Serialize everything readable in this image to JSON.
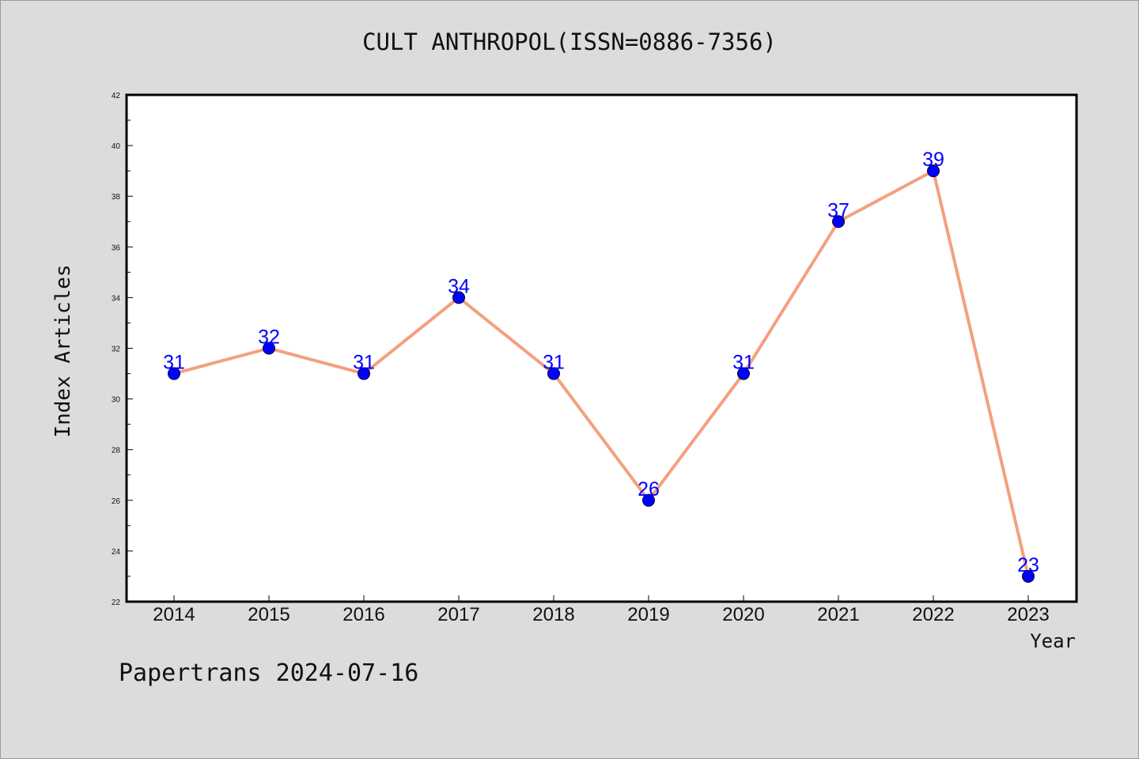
{
  "chart_data": {
    "type": "line",
    "title": "CULT ANTHROPOL(ISSN=0886-7356)",
    "xlabel": "Year",
    "ylabel": "Index Articles",
    "categories": [
      "2014",
      "2015",
      "2016",
      "2017",
      "2018",
      "2019",
      "2020",
      "2021",
      "2022",
      "2023"
    ],
    "series": [
      {
        "values": [
          31,
          32,
          31,
          34,
          31,
          26,
          31,
          37,
          39,
          23
        ]
      }
    ],
    "ylim": [
      22,
      42
    ],
    "y_ticks": [
      "22",
      "24",
      "26",
      "28",
      "30",
      "32",
      "34",
      "36",
      "38",
      "40",
      "42"
    ],
    "data_labels": true,
    "grid": false,
    "line_color": "#f4a07e",
    "marker_color": "#0000ff",
    "label_color": "#0000ff"
  },
  "footer": {
    "text": "Papertrans 2024-07-16"
  }
}
